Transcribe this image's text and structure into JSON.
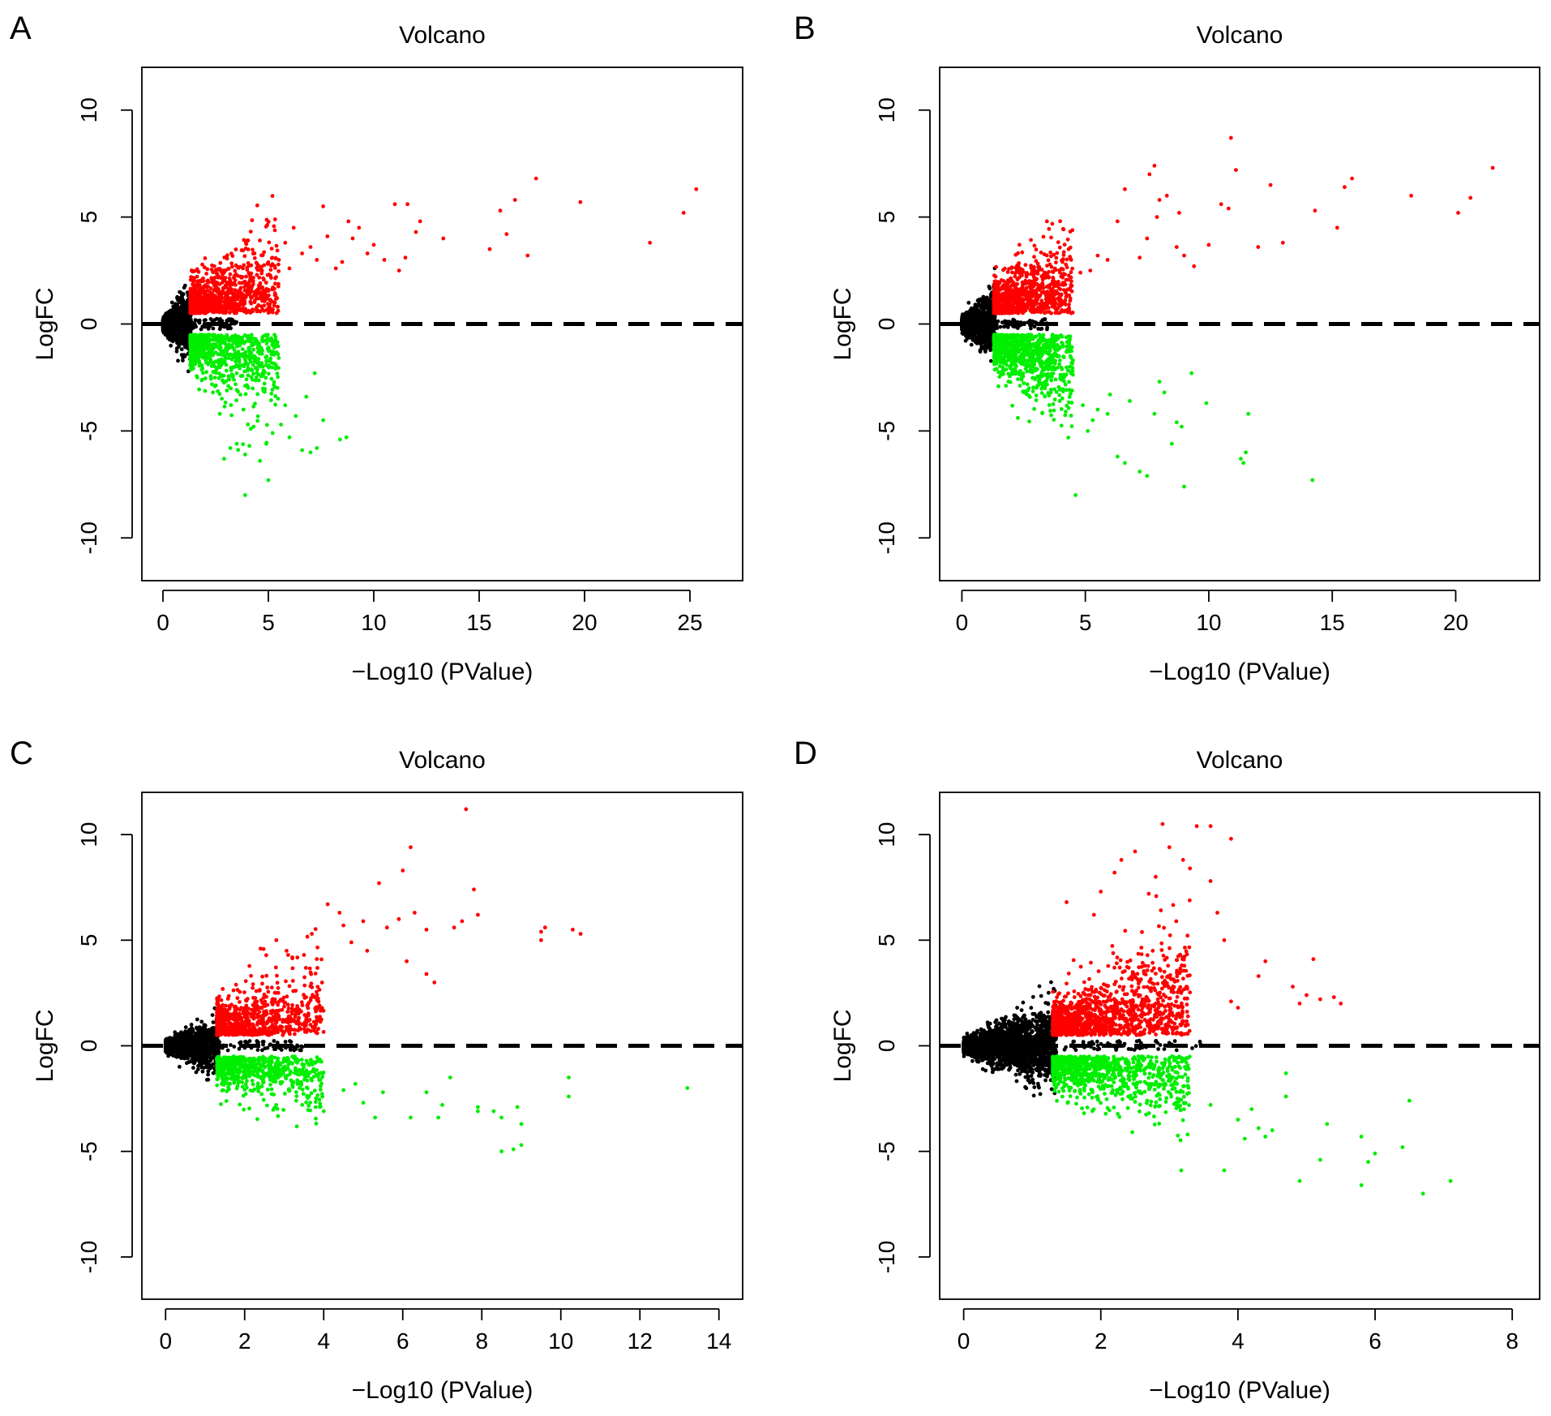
{
  "figure": {
    "panels": [
      "A",
      "B",
      "C",
      "D"
    ]
  },
  "chart_data": [
    {
      "panel": "A",
      "type": "scatter",
      "title": "Volcano",
      "xlabel": "−Log10 (PValue)",
      "ylabel": "LogFC",
      "xticks": [
        0,
        5,
        10,
        15,
        20,
        25
      ],
      "yticks": [
        -10,
        -5,
        0,
        5,
        10
      ],
      "xlim": [
        -1.0,
        27.5
      ],
      "ylim": [
        -12,
        12
      ],
      "hline": 0,
      "colors": {
        "up": "#ff0000",
        "down": "#00ee00",
        "ns": "#000000"
      },
      "threshold_x": 1.3,
      "density": {
        "ns": 1200,
        "up": 950,
        "down": 800,
        "nsSpread": 1.3,
        "upSpread": 1.6,
        "downSpread": 1.6,
        "xmaxDense": 5.5
      },
      "up_points": [
        [
          25.3,
          6.3
        ],
        [
          24.7,
          5.2
        ],
        [
          23.1,
          3.8
        ],
        [
          19.8,
          5.7
        ],
        [
          17.7,
          6.8
        ],
        [
          17.3,
          3.2
        ],
        [
          16.7,
          5.8
        ],
        [
          16.3,
          4.2
        ],
        [
          16.0,
          5.3
        ],
        [
          15.5,
          3.5
        ],
        [
          13.3,
          4.0
        ],
        [
          12.2,
          4.8
        ],
        [
          12.0,
          4.3
        ],
        [
          11.6,
          5.6
        ],
        [
          11.0,
          5.6
        ],
        [
          11.5,
          3.1
        ],
        [
          11.2,
          2.5
        ],
        [
          10.5,
          3.0
        ],
        [
          10.0,
          3.7
        ],
        [
          9.7,
          3.3
        ],
        [
          9.3,
          4.5
        ],
        [
          9.0,
          4.0
        ],
        [
          8.8,
          4.8
        ],
        [
          8.5,
          2.9
        ],
        [
          8.2,
          2.6
        ],
        [
          7.8,
          4.1
        ],
        [
          7.6,
          5.5
        ],
        [
          7.3,
          3.0
        ],
        [
          7.0,
          3.6
        ],
        [
          6.6,
          3.3
        ],
        [
          6.2,
          4.5
        ],
        [
          6.0,
          2.6
        ],
        [
          5.8,
          3.8
        ],
        [
          5.5,
          3.0
        ],
        [
          4.0,
          3.9
        ],
        [
          3.5,
          2.7
        ]
      ],
      "down_points": [
        [
          8.7,
          -5.3
        ],
        [
          8.4,
          -5.4
        ],
        [
          7.6,
          -4.5
        ],
        [
          7.3,
          -5.8
        ],
        [
          7.0,
          -6.0
        ],
        [
          6.6,
          -5.9
        ],
        [
          6.3,
          -4.3
        ],
        [
          6.0,
          -5.3
        ],
        [
          5.8,
          -3.8
        ],
        [
          5.6,
          -4.7
        ],
        [
          5.2,
          -5.1
        ],
        [
          5.0,
          -7.3
        ],
        [
          4.9,
          -5.6
        ],
        [
          4.6,
          -6.4
        ],
        [
          4.1,
          -5.7
        ],
        [
          3.9,
          -6.1
        ],
        [
          3.9,
          -8.0
        ],
        [
          3.5,
          -5.6
        ],
        [
          3.2,
          -5.8
        ],
        [
          2.9,
          -6.3
        ],
        [
          2.7,
          -4.2
        ],
        [
          4.3,
          -4.8
        ],
        [
          6.8,
          -3.4
        ],
        [
          7.2,
          -2.3
        ]
      ]
    },
    {
      "panel": "B",
      "type": "scatter",
      "title": "Volcano",
      "xlabel": "−Log10 (PValue)",
      "ylabel": "LogFC",
      "xticks": [
        0,
        5,
        10,
        15,
        20
      ],
      "yticks": [
        -10,
        -5,
        0,
        5,
        10
      ],
      "xlim": [
        -0.9,
        23.4
      ],
      "ylim": [
        -12,
        12
      ],
      "hline": 0,
      "colors": {
        "up": "#ff0000",
        "down": "#00ee00",
        "ns": "#000000"
      },
      "threshold_x": 1.3,
      "density": {
        "ns": 1200,
        "up": 900,
        "down": 950,
        "nsSpread": 1.3,
        "upSpread": 1.4,
        "downSpread": 1.6,
        "xmaxDense": 4.5
      },
      "up_points": [
        [
          21.5,
          7.3
        ],
        [
          20.6,
          5.9
        ],
        [
          20.1,
          5.2
        ],
        [
          18.2,
          6.0
        ],
        [
          15.8,
          6.8
        ],
        [
          15.5,
          6.4
        ],
        [
          15.2,
          4.5
        ],
        [
          14.3,
          5.3
        ],
        [
          13.0,
          3.8
        ],
        [
          12.5,
          6.5
        ],
        [
          12.0,
          3.6
        ],
        [
          11.1,
          7.2
        ],
        [
          10.9,
          8.7
        ],
        [
          10.8,
          5.4
        ],
        [
          10.5,
          5.6
        ],
        [
          10.0,
          3.7
        ],
        [
          9.4,
          2.7
        ],
        [
          9.0,
          3.2
        ],
        [
          8.8,
          5.2
        ],
        [
          8.7,
          3.6
        ],
        [
          8.3,
          6.0
        ],
        [
          8.0,
          5.8
        ],
        [
          7.9,
          5.0
        ],
        [
          7.8,
          7.4
        ],
        [
          7.6,
          7.0
        ],
        [
          7.5,
          4.0
        ],
        [
          7.2,
          3.1
        ],
        [
          6.6,
          6.3
        ],
        [
          6.3,
          4.8
        ],
        [
          5.9,
          3.0
        ],
        [
          5.5,
          3.2
        ],
        [
          5.2,
          2.5
        ],
        [
          4.8,
          2.4
        ]
      ],
      "down_points": [
        [
          14.2,
          -7.3
        ],
        [
          11.6,
          -4.2
        ],
        [
          11.5,
          -6.0
        ],
        [
          11.4,
          -6.5
        ],
        [
          11.3,
          -6.3
        ],
        [
          9.9,
          -3.7
        ],
        [
          9.3,
          -2.3
        ],
        [
          9.0,
          -7.6
        ],
        [
          8.9,
          -4.8
        ],
        [
          8.7,
          -4.6
        ],
        [
          8.5,
          -5.6
        ],
        [
          8.2,
          -3.2
        ],
        [
          8.0,
          -2.7
        ],
        [
          7.5,
          -7.1
        ],
        [
          7.2,
          -6.9
        ],
        [
          6.6,
          -6.5
        ],
        [
          6.3,
          -6.2
        ],
        [
          5.9,
          -4.2
        ],
        [
          5.5,
          -4.0
        ],
        [
          5.1,
          -5.0
        ],
        [
          4.6,
          -8.0
        ],
        [
          7.8,
          -4.2
        ],
        [
          6.8,
          -3.6
        ],
        [
          6.0,
          -3.3
        ],
        [
          5.3,
          -4.5
        ],
        [
          4.9,
          -3.8
        ]
      ]
    },
    {
      "panel": "C",
      "type": "scatter",
      "title": "Volcano",
      "xlabel": "−Log10 (PValue)",
      "ylabel": "LogFC",
      "xticks": [
        0,
        2,
        4,
        6,
        8,
        10,
        12,
        14
      ],
      "yticks": [
        -10,
        -5,
        0,
        5,
        10
      ],
      "xlim": [
        -0.6,
        14.6
      ],
      "ylim": [
        -12,
        12
      ],
      "hline": 0,
      "colors": {
        "up": "#ff0000",
        "down": "#00ee00",
        "ns": "#000000"
      },
      "threshold_x": 1.3,
      "density": {
        "ns": 1400,
        "up": 850,
        "down": 650,
        "nsSpread": 1.0,
        "upSpread": 1.3,
        "downSpread": 0.8,
        "xmaxDense": 4.0
      },
      "up_points": [
        [
          7.6,
          11.2
        ],
        [
          6.2,
          9.4
        ],
        [
          6.0,
          8.3
        ],
        [
          5.4,
          7.7
        ],
        [
          4.1,
          6.7
        ],
        [
          7.8,
          7.4
        ],
        [
          7.9,
          6.2
        ],
        [
          7.5,
          5.9
        ],
        [
          7.3,
          5.6
        ],
        [
          6.3,
          6.3
        ],
        [
          5.9,
          6.0
        ],
        [
          6.6,
          5.5
        ],
        [
          5.6,
          5.6
        ],
        [
          5.0,
          5.9
        ],
        [
          4.4,
          6.3
        ],
        [
          4.5,
          5.7
        ],
        [
          10.3,
          5.5
        ],
        [
          10.5,
          5.3
        ],
        [
          9.5,
          5.4
        ],
        [
          9.6,
          5.6
        ],
        [
          9.5,
          5.0
        ],
        [
          6.1,
          4.0
        ],
        [
          6.6,
          3.4
        ],
        [
          6.8,
          3.0
        ],
        [
          5.1,
          4.5
        ],
        [
          4.7,
          4.9
        ],
        [
          3.7,
          5.3
        ],
        [
          3.5,
          4.3
        ],
        [
          2.8,
          5.0
        ],
        [
          2.4,
          4.6
        ],
        [
          3.1,
          4.3
        ]
      ],
      "down_points": [
        [
          13.2,
          -2.0
        ],
        [
          10.2,
          -1.5
        ],
        [
          10.2,
          -2.4
        ],
        [
          9.0,
          -3.7
        ],
        [
          9.0,
          -4.7
        ],
        [
          8.9,
          -2.9
        ],
        [
          8.5,
          -3.4
        ],
        [
          8.5,
          -5.0
        ],
        [
          8.3,
          -3.1
        ],
        [
          8.8,
          -4.9
        ],
        [
          7.9,
          -2.9
        ],
        [
          7.9,
          -3.1
        ],
        [
          7.2,
          -1.5
        ],
        [
          7.0,
          -2.8
        ],
        [
          6.9,
          -3.4
        ],
        [
          6.6,
          -2.2
        ],
        [
          6.2,
          -3.4
        ],
        [
          5.5,
          -2.2
        ],
        [
          5.3,
          -3.4
        ],
        [
          5.0,
          -2.7
        ],
        [
          4.5,
          -2.1
        ],
        [
          3.9,
          -2.9
        ],
        [
          4.0,
          -3.1
        ],
        [
          4.8,
          -1.8
        ]
      ]
    },
    {
      "panel": "D",
      "type": "scatter",
      "title": "Volcano",
      "xlabel": "−Log10 (PValue)",
      "ylabel": "LogFC",
      "xticks": [
        0,
        2,
        4,
        6,
        8
      ],
      "yticks": [
        -10,
        -5,
        0,
        5,
        10
      ],
      "xlim": [
        -0.35,
        8.4
      ],
      "ylim": [
        -12,
        12
      ],
      "hline": 0,
      "colors": {
        "up": "#ff0000",
        "down": "#00ee00",
        "ns": "#000000"
      },
      "threshold_x": 1.3,
      "density": {
        "ns": 2600,
        "up": 1400,
        "down": 900,
        "nsSpread": 1.8,
        "upSpread": 1.9,
        "downSpread": 1.2,
        "xmaxDense": 3.3
      },
      "up_points": [
        [
          2.9,
          10.5
        ],
        [
          3.4,
          10.4
        ],
        [
          3.6,
          10.4
        ],
        [
          3.9,
          9.8
        ],
        [
          3.0,
          9.4
        ],
        [
          2.5,
          9.2
        ],
        [
          2.3,
          8.8
        ],
        [
          3.2,
          8.8
        ],
        [
          2.2,
          8.2
        ],
        [
          3.3,
          8.4
        ],
        [
          2.8,
          8.0
        ],
        [
          3.6,
          7.8
        ],
        [
          2.7,
          7.2
        ],
        [
          2.0,
          7.3
        ],
        [
          1.5,
          6.8
        ],
        [
          1.9,
          6.2
        ],
        [
          3.7,
          6.3
        ],
        [
          3.1,
          5.9
        ],
        [
          3.8,
          5.0
        ],
        [
          4.4,
          4.0
        ],
        [
          5.1,
          4.1
        ],
        [
          4.3,
          3.3
        ],
        [
          4.8,
          2.8
        ],
        [
          5.0,
          2.4
        ],
        [
          5.2,
          2.2
        ],
        [
          5.5,
          2.0
        ],
        [
          5.4,
          2.3
        ],
        [
          4.0,
          1.8
        ],
        [
          4.9,
          2.0
        ],
        [
          3.9,
          2.1
        ]
      ],
      "down_points": [
        [
          6.7,
          -7.0
        ],
        [
          7.1,
          -6.4
        ],
        [
          5.8,
          -6.6
        ],
        [
          4.9,
          -6.4
        ],
        [
          6.4,
          -4.8
        ],
        [
          6.0,
          -5.1
        ],
        [
          5.9,
          -5.5
        ],
        [
          5.8,
          -4.3
        ],
        [
          5.2,
          -5.4
        ],
        [
          5.3,
          -3.7
        ],
        [
          6.5,
          -2.6
        ],
        [
          4.7,
          -2.4
        ],
        [
          4.5,
          -4.0
        ],
        [
          4.4,
          -4.3
        ],
        [
          4.3,
          -3.9
        ],
        [
          4.1,
          -4.4
        ],
        [
          4.0,
          -3.5
        ],
        [
          3.8,
          -5.9
        ],
        [
          3.6,
          -2.8
        ],
        [
          4.7,
          -1.3
        ],
        [
          4.2,
          -3.0
        ]
      ]
    }
  ]
}
